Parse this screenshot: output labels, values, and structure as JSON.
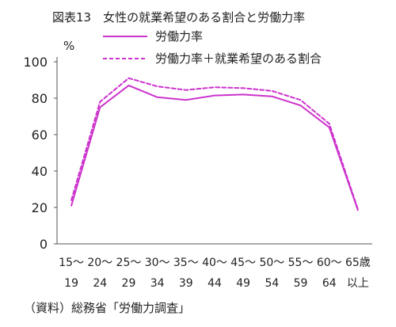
{
  "chart_data": {
    "type": "line",
    "title": "図表13　女性の就業希望のある割合と労働力率",
    "y_unit": "%",
    "ylim": [
      0,
      100
    ],
    "y_ticks": [
      0,
      20,
      40,
      60,
      80,
      100
    ],
    "grid": false,
    "legend_position": "top-right",
    "categories": [
      [
        "15～",
        "19"
      ],
      [
        "20～",
        "24"
      ],
      [
        "25～",
        "29"
      ],
      [
        "30～",
        "34"
      ],
      [
        "35～",
        "39"
      ],
      [
        "40～",
        "44"
      ],
      [
        "45～",
        "49"
      ],
      [
        "50～",
        "54"
      ],
      [
        "55～",
        "59"
      ],
      [
        "60～",
        "64"
      ],
      [
        "65歳",
        "以上"
      ]
    ],
    "series": [
      {
        "name": "労働力率",
        "style": "solid",
        "color": "#cc33cc",
        "values": [
          21,
          75,
          87,
          80.5,
          79,
          81.5,
          82,
          81,
          76,
          64,
          18.5
        ]
      },
      {
        "name": "労働力率＋就業希望のある割合",
        "style": "dashed",
        "color": "#cc33cc",
        "values": [
          24,
          78,
          91,
          86.5,
          84.5,
          86,
          85.5,
          84,
          79,
          66,
          19
        ]
      }
    ],
    "source": "（資料）総務省「労働力調査」"
  }
}
